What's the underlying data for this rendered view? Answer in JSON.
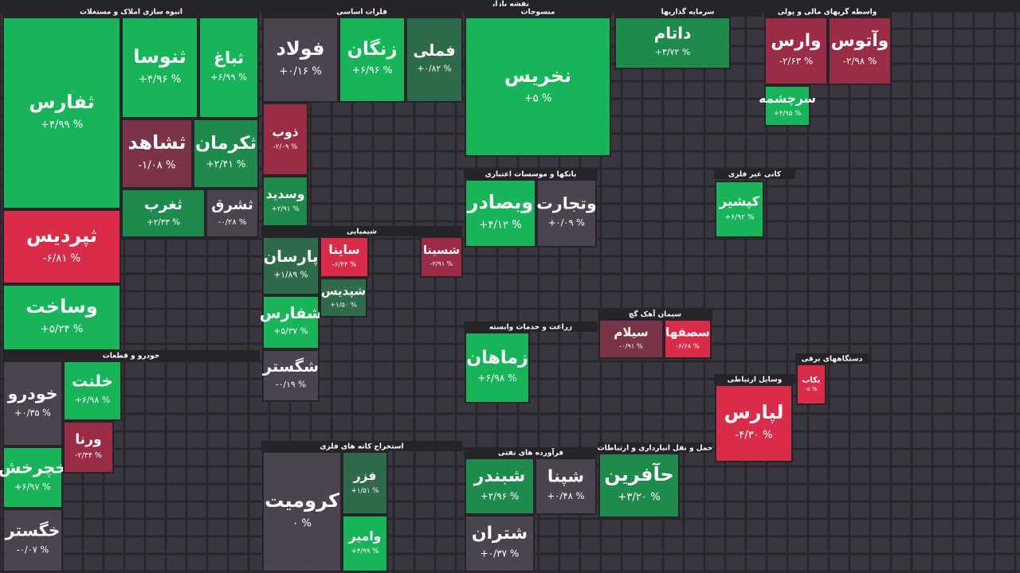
{
  "chart_data": {
    "type": "treemap",
    "title": "نقشه بازار",
    "sectors": [
      {
        "name": "انبوه سازی املاک و مستغلات",
        "tiles": [
          {
            "name": "ثفارس",
            "value": 4.99,
            "value_label": "+۴/۹۹ %"
          },
          {
            "name": "ثنوسا",
            "value": 4.96,
            "value_label": "+۴/۹۶ %"
          },
          {
            "name": "ثباغ",
            "value": 6.99,
            "value_label": "+۶/۹۹ %"
          },
          {
            "name": "ثشاهد",
            "value": -1.08,
            "value_label": "-۱/۰۸ %"
          },
          {
            "name": "ثکرمان",
            "value": 2.41,
            "value_label": "+۲/۴۱ %"
          },
          {
            "name": "ثپردیس",
            "value": -6.81,
            "value_label": "-۶/۸۱ %"
          },
          {
            "name": "ثغرب",
            "value": 2.33,
            "value_label": "+۲/۳۳ %"
          },
          {
            "name": "ثشرق",
            "value": -0.28,
            "value_label": "-۰/۲۸ %"
          },
          {
            "name": "وساخت",
            "value": 5.24,
            "value_label": "+۵/۲۴ %"
          }
        ]
      },
      {
        "name": "خودرو و قطعات",
        "tiles": [
          {
            "name": "خودرو",
            "value": 0.35,
            "value_label": "+۰/۳۵ %"
          },
          {
            "name": "خلنت",
            "value": 6.98,
            "value_label": "+۶/۹۸ %"
          },
          {
            "name": "خچرخش",
            "value": 6.97,
            "value_label": "+۶/۹۷ %"
          },
          {
            "name": "خگستر",
            "value": -0.07,
            "value_label": "-۰/۰۷ %"
          },
          {
            "name": "ورنا",
            "value": -2.34,
            "value_label": "-۲/۳۴ %"
          }
        ]
      },
      {
        "name": "فلزات اساسی",
        "tiles": [
          {
            "name": "فولاد",
            "value": 0.16,
            "value_label": "+۰/۱۶ %"
          },
          {
            "name": "زنگان",
            "value": 6.96,
            "value_label": "+۶/۹۶ %"
          },
          {
            "name": "فملی",
            "value": 0.82,
            "value_label": "+۰/۸۲ %"
          },
          {
            "name": "ذوب",
            "value": -2.09,
            "value_label": "-۲/۰۹ %"
          },
          {
            "name": "وسدید",
            "value": 2.91,
            "value_label": "+۲/۹۱ %"
          }
        ]
      },
      {
        "name": "شیمیایی",
        "tiles": [
          {
            "name": "پارسان",
            "value": 1.89,
            "value_label": "+۱/۸۹ %"
          },
          {
            "name": "شفارس",
            "value": 5.37,
            "value_label": "+۵/۳۷ %"
          },
          {
            "name": "شگستر",
            "value": -0.19,
            "value_label": "-۰/۱۹ %"
          },
          {
            "name": "ساینا",
            "value": -6.44,
            "value_label": "-۶/۴۴ %"
          },
          {
            "name": "شسینا",
            "value": -3.91,
            "value_label": "-۳/۹۱ %"
          },
          {
            "name": "شپدیس",
            "value": 1.5,
            "value_label": "+۱/۵۰ %"
          }
        ]
      },
      {
        "name": "منسوجات",
        "tiles": [
          {
            "name": "نخریس",
            "value": 5,
            "value_label": "+۵ %"
          }
        ]
      },
      {
        "name": "بانکها و موسسات اعتباری",
        "tiles": [
          {
            "name": "وبصادر",
            "value": 4.12,
            "value_label": "+۴/۱۲ %"
          },
          {
            "name": "وتجارت",
            "value": 0.09,
            "value_label": "+۰/۰۹ %"
          }
        ]
      },
      {
        "name": "زراعت و خدمات وابسته",
        "tiles": [
          {
            "name": "زماهان",
            "value": 6.98,
            "value_label": "+۶/۹۸ %"
          }
        ]
      },
      {
        "name": "فرآورده های نفتی",
        "tiles": [
          {
            "name": "شبندر",
            "value": 2.96,
            "value_label": "+۲/۹۶ %"
          },
          {
            "name": "شپنا",
            "value": 0.48,
            "value_label": "+۰/۴۸ %"
          },
          {
            "name": "شتران",
            "value": 0.37,
            "value_label": "+۰/۳۷ %"
          }
        ]
      },
      {
        "name": "سرمایه گذاریها",
        "tiles": [
          {
            "name": "داتام",
            "value": 3.72,
            "value_label": "+۳/۷۲ %"
          }
        ]
      },
      {
        "name": "واسطه گریهای مالی و پولی",
        "tiles": [
          {
            "name": "وارس",
            "value": -2.63,
            "value_label": "-۲/۶۳ %"
          },
          {
            "name": "وآتوس",
            "value": -2.98,
            "value_label": "-۲/۹۸ %"
          },
          {
            "name": "سرچشمه",
            "value": 4.95,
            "value_label": "+۴/۹۵ %"
          }
        ]
      },
      {
        "name": "کانی غیر فلزی",
        "tiles": [
          {
            "name": "کپشیر",
            "value": 6.92,
            "value_label": "+۶/۹۲ %"
          }
        ]
      },
      {
        "name": "سیمان آهک گچ",
        "tiles": [
          {
            "name": "سیلام",
            "value": -0.91,
            "value_label": "-۰/۹۱ %"
          },
          {
            "name": "سصفها",
            "value": -6.68,
            "value_label": "-۶/۶۸ %"
          }
        ]
      },
      {
        "name": "حمل و نقل انبارداری و ارتباطات",
        "tiles": [
          {
            "name": "حآفرین",
            "value": 3.2,
            "value_label": "+۳/۲۰ %"
          }
        ]
      },
      {
        "name": "وسایل ارتباطی",
        "tiles": [
          {
            "name": "لپارس",
            "value": -4.3,
            "value_label": "-۴/۳۰ %"
          }
        ]
      },
      {
        "name": "استخراج کانه های فلزی",
        "tiles": [
          {
            "name": "کرومیت",
            "value": 0,
            "value_label": "۰ %"
          },
          {
            "name": "فزر",
            "value": 1.51,
            "value_label": "+۱/۵۱ %"
          },
          {
            "name": "وامیر",
            "value": 4.99,
            "value_label": "+۴/۹۹ %"
          }
        ]
      },
      {
        "name": "دستگاههای برقی",
        "tiles": [
          {
            "name": "بکاب",
            "value": -5,
            "value_label": "-۵ %"
          }
        ]
      }
    ]
  }
}
